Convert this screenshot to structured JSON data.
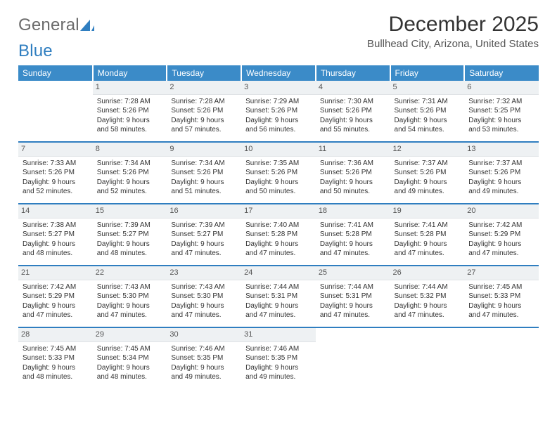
{
  "logo": {
    "text1": "General",
    "text2": "Blue"
  },
  "title": "December 2025",
  "subtitle": "Bullhead City, Arizona, United States",
  "colors": {
    "header_bg": "#3b8bc8",
    "header_text": "#ffffff",
    "daynum_bg": "#eef1f3",
    "separator": "#2f7ec0",
    "logo_gray": "#6b6b6b",
    "logo_blue": "#2f7ec0",
    "body_text": "#333333"
  },
  "day_headers": [
    "Sunday",
    "Monday",
    "Tuesday",
    "Wednesday",
    "Thursday",
    "Friday",
    "Saturday"
  ],
  "weeks": [
    [
      {
        "num": "",
        "sunrise": "",
        "sunset": "",
        "daylight": ""
      },
      {
        "num": "1",
        "sunrise": "Sunrise: 7:28 AM",
        "sunset": "Sunset: 5:26 PM",
        "daylight": "Daylight: 9 hours and 58 minutes."
      },
      {
        "num": "2",
        "sunrise": "Sunrise: 7:28 AM",
        "sunset": "Sunset: 5:26 PM",
        "daylight": "Daylight: 9 hours and 57 minutes."
      },
      {
        "num": "3",
        "sunrise": "Sunrise: 7:29 AM",
        "sunset": "Sunset: 5:26 PM",
        "daylight": "Daylight: 9 hours and 56 minutes."
      },
      {
        "num": "4",
        "sunrise": "Sunrise: 7:30 AM",
        "sunset": "Sunset: 5:26 PM",
        "daylight": "Daylight: 9 hours and 55 minutes."
      },
      {
        "num": "5",
        "sunrise": "Sunrise: 7:31 AM",
        "sunset": "Sunset: 5:26 PM",
        "daylight": "Daylight: 9 hours and 54 minutes."
      },
      {
        "num": "6",
        "sunrise": "Sunrise: 7:32 AM",
        "sunset": "Sunset: 5:25 PM",
        "daylight": "Daylight: 9 hours and 53 minutes."
      }
    ],
    [
      {
        "num": "7",
        "sunrise": "Sunrise: 7:33 AM",
        "sunset": "Sunset: 5:26 PM",
        "daylight": "Daylight: 9 hours and 52 minutes."
      },
      {
        "num": "8",
        "sunrise": "Sunrise: 7:34 AM",
        "sunset": "Sunset: 5:26 PM",
        "daylight": "Daylight: 9 hours and 52 minutes."
      },
      {
        "num": "9",
        "sunrise": "Sunrise: 7:34 AM",
        "sunset": "Sunset: 5:26 PM",
        "daylight": "Daylight: 9 hours and 51 minutes."
      },
      {
        "num": "10",
        "sunrise": "Sunrise: 7:35 AM",
        "sunset": "Sunset: 5:26 PM",
        "daylight": "Daylight: 9 hours and 50 minutes."
      },
      {
        "num": "11",
        "sunrise": "Sunrise: 7:36 AM",
        "sunset": "Sunset: 5:26 PM",
        "daylight": "Daylight: 9 hours and 50 minutes."
      },
      {
        "num": "12",
        "sunrise": "Sunrise: 7:37 AM",
        "sunset": "Sunset: 5:26 PM",
        "daylight": "Daylight: 9 hours and 49 minutes."
      },
      {
        "num": "13",
        "sunrise": "Sunrise: 7:37 AM",
        "sunset": "Sunset: 5:26 PM",
        "daylight": "Daylight: 9 hours and 49 minutes."
      }
    ],
    [
      {
        "num": "14",
        "sunrise": "Sunrise: 7:38 AM",
        "sunset": "Sunset: 5:27 PM",
        "daylight": "Daylight: 9 hours and 48 minutes."
      },
      {
        "num": "15",
        "sunrise": "Sunrise: 7:39 AM",
        "sunset": "Sunset: 5:27 PM",
        "daylight": "Daylight: 9 hours and 48 minutes."
      },
      {
        "num": "16",
        "sunrise": "Sunrise: 7:39 AM",
        "sunset": "Sunset: 5:27 PM",
        "daylight": "Daylight: 9 hours and 47 minutes."
      },
      {
        "num": "17",
        "sunrise": "Sunrise: 7:40 AM",
        "sunset": "Sunset: 5:28 PM",
        "daylight": "Daylight: 9 hours and 47 minutes."
      },
      {
        "num": "18",
        "sunrise": "Sunrise: 7:41 AM",
        "sunset": "Sunset: 5:28 PM",
        "daylight": "Daylight: 9 hours and 47 minutes."
      },
      {
        "num": "19",
        "sunrise": "Sunrise: 7:41 AM",
        "sunset": "Sunset: 5:28 PM",
        "daylight": "Daylight: 9 hours and 47 minutes."
      },
      {
        "num": "20",
        "sunrise": "Sunrise: 7:42 AM",
        "sunset": "Sunset: 5:29 PM",
        "daylight": "Daylight: 9 hours and 47 minutes."
      }
    ],
    [
      {
        "num": "21",
        "sunrise": "Sunrise: 7:42 AM",
        "sunset": "Sunset: 5:29 PM",
        "daylight": "Daylight: 9 hours and 47 minutes."
      },
      {
        "num": "22",
        "sunrise": "Sunrise: 7:43 AM",
        "sunset": "Sunset: 5:30 PM",
        "daylight": "Daylight: 9 hours and 47 minutes."
      },
      {
        "num": "23",
        "sunrise": "Sunrise: 7:43 AM",
        "sunset": "Sunset: 5:30 PM",
        "daylight": "Daylight: 9 hours and 47 minutes."
      },
      {
        "num": "24",
        "sunrise": "Sunrise: 7:44 AM",
        "sunset": "Sunset: 5:31 PM",
        "daylight": "Daylight: 9 hours and 47 minutes."
      },
      {
        "num": "25",
        "sunrise": "Sunrise: 7:44 AM",
        "sunset": "Sunset: 5:31 PM",
        "daylight": "Daylight: 9 hours and 47 minutes."
      },
      {
        "num": "26",
        "sunrise": "Sunrise: 7:44 AM",
        "sunset": "Sunset: 5:32 PM",
        "daylight": "Daylight: 9 hours and 47 minutes."
      },
      {
        "num": "27",
        "sunrise": "Sunrise: 7:45 AM",
        "sunset": "Sunset: 5:33 PM",
        "daylight": "Daylight: 9 hours and 47 minutes."
      }
    ],
    [
      {
        "num": "28",
        "sunrise": "Sunrise: 7:45 AM",
        "sunset": "Sunset: 5:33 PM",
        "daylight": "Daylight: 9 hours and 48 minutes."
      },
      {
        "num": "29",
        "sunrise": "Sunrise: 7:45 AM",
        "sunset": "Sunset: 5:34 PM",
        "daylight": "Daylight: 9 hours and 48 minutes."
      },
      {
        "num": "30",
        "sunrise": "Sunrise: 7:46 AM",
        "sunset": "Sunset: 5:35 PM",
        "daylight": "Daylight: 9 hours and 49 minutes."
      },
      {
        "num": "31",
        "sunrise": "Sunrise: 7:46 AM",
        "sunset": "Sunset: 5:35 PM",
        "daylight": "Daylight: 9 hours and 49 minutes."
      },
      {
        "num": "",
        "sunrise": "",
        "sunset": "",
        "daylight": ""
      },
      {
        "num": "",
        "sunrise": "",
        "sunset": "",
        "daylight": ""
      },
      {
        "num": "",
        "sunrise": "",
        "sunset": "",
        "daylight": ""
      }
    ]
  ]
}
